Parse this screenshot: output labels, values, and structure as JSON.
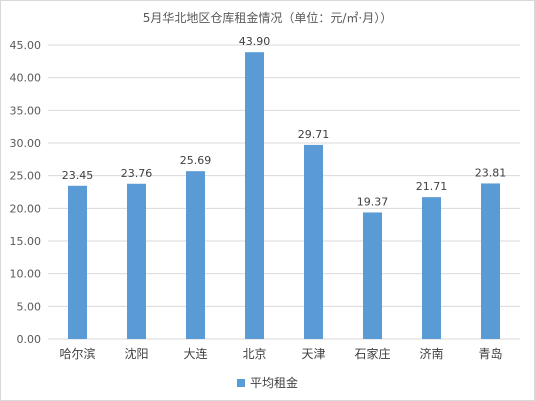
{
  "chart_data": {
    "type": "bar",
    "title": "5月华北地区仓库租金情况（单位：元/㎡·月））",
    "categories": [
      "哈尔滨",
      "沈阳",
      "大连",
      "北京",
      "天津",
      "石家庄",
      "济南",
      "青岛"
    ],
    "series": [
      {
        "name": "平均租金",
        "values": [
          23.45,
          23.76,
          25.69,
          43.9,
          29.71,
          19.37,
          21.71,
          23.81
        ],
        "labels": [
          "23.45",
          "23.76",
          "25.69",
          "43.90",
          "29.71",
          "19.37",
          "21.71",
          "23.81"
        ],
        "color": "#5b9bd5"
      }
    ],
    "ylim": [
      0,
      45
    ],
    "yticks": [
      "0.00",
      "5.00",
      "10.00",
      "15.00",
      "20.00",
      "25.00",
      "30.00",
      "35.00",
      "40.00",
      "45.00"
    ],
    "grid": true,
    "gridColor": "#d9d9d9",
    "legend": "bottom"
  }
}
